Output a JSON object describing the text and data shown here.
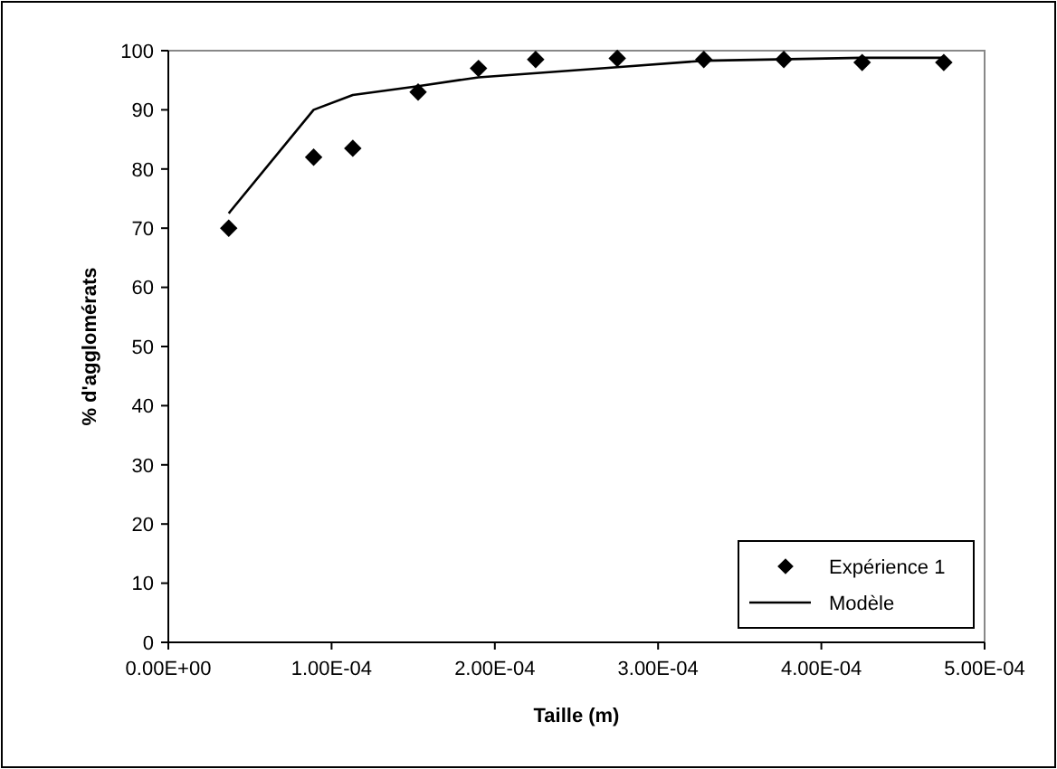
{
  "chart_data": {
    "type": "scatter",
    "xlabel": "Taille (m)",
    "ylabel": "% d'agglomérats",
    "xlim": [
      0,
      0.0005
    ],
    "xticks": [
      {
        "value": 0,
        "label": "0.00E+00"
      },
      {
        "value": 0.0001,
        "label": "1.00E-04"
      },
      {
        "value": 0.0002,
        "label": "2.00E-04"
      },
      {
        "value": 0.0003,
        "label": "3.00E-04"
      },
      {
        "value": 0.0004,
        "label": "4.00E-04"
      },
      {
        "value": 0.0005,
        "label": "5.00E-04"
      }
    ],
    "ylim": [
      0,
      100
    ],
    "yticks": [
      0,
      10,
      20,
      30,
      40,
      50,
      60,
      70,
      80,
      90,
      100
    ],
    "grid": false,
    "legend": "bottom right",
    "series": [
      {
        "name": "Expérience 1",
        "marker": "diamond",
        "color": "#000000",
        "x": [
          3.7e-05,
          8.9e-05,
          0.000113,
          0.000153,
          0.00019,
          0.000225,
          0.000275,
          0.000328,
          0.000377,
          0.000425,
          0.000475
        ],
        "values": [
          70,
          82,
          83.5,
          93,
          97,
          98.5,
          98.7,
          98.5,
          98.5,
          98,
          98
        ]
      },
      {
        "name": "Modèle",
        "type": "line",
        "marker": "none",
        "line_style": "solid",
        "color": "#000000",
        "x": [
          3.7e-05,
          8.9e-05,
          0.000113,
          0.000153,
          0.00019,
          0.000275,
          0.000328,
          0.000425,
          0.000475
        ],
        "values": [
          72.5,
          90,
          92.5,
          94,
          95.5,
          97.2,
          98.3,
          98.8,
          98.8
        ]
      }
    ]
  }
}
